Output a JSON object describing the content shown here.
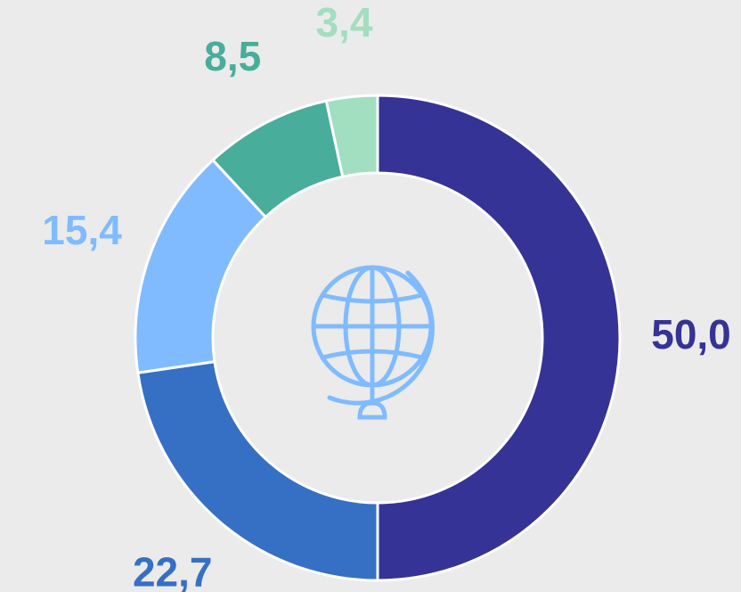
{
  "chart_data": {
    "type": "donut",
    "categories": [
      null,
      null,
      null,
      null,
      null
    ],
    "values": [
      50.0,
      22.7,
      15.4,
      8.5,
      3.4
    ],
    "value_labels": [
      "50,0",
      "22,7",
      "15,4",
      "8,5",
      "3,4"
    ],
    "colors": [
      "#353395",
      "#3670c4",
      "#80bbff",
      "#48ad9a",
      "#a2dec0"
    ]
  }
}
